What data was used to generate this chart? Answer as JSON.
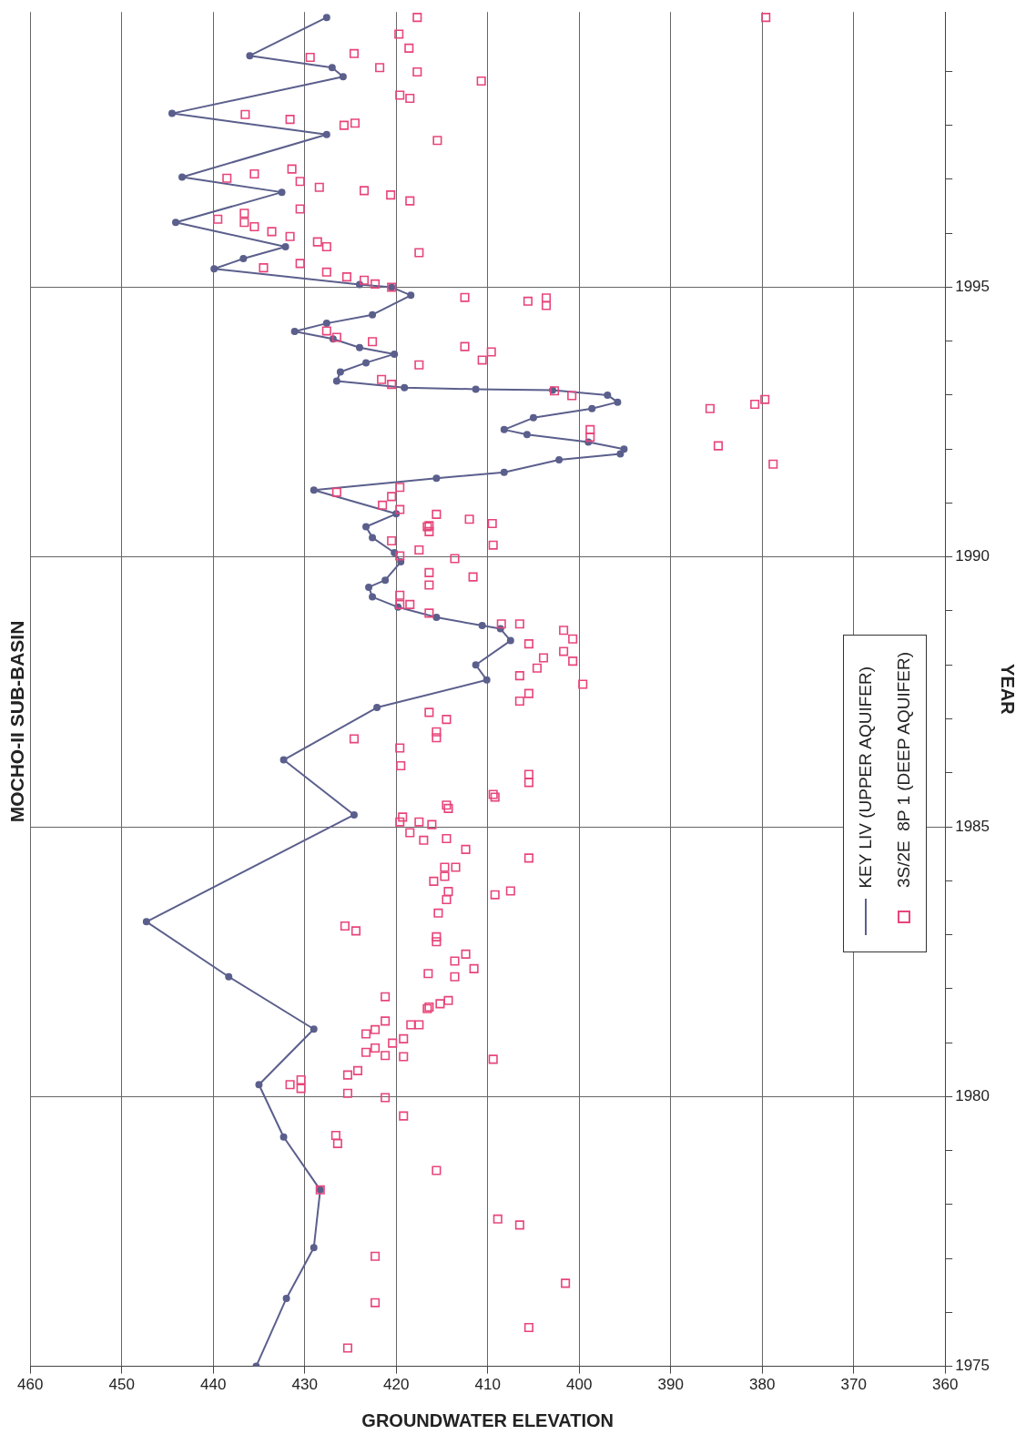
{
  "chart_data": {
    "type": "line",
    "title": "MOCHO-II SUB-BASIN",
    "xlabel": "GROUNDWATER ELEVATION",
    "ylabel": "YEAR",
    "xlim": [
      460,
      360
    ],
    "xticks": [
      460,
      450,
      440,
      430,
      420,
      410,
      400,
      390,
      380,
      370,
      360
    ],
    "ylim": [
      1975,
      2000.1
    ],
    "yticks": [
      1975,
      {
        "value": 1976,
        "label": null
      },
      {
        "value": 1977,
        "label": null
      },
      {
        "value": 1978,
        "label": null
      },
      {
        "value": 1979,
        "label": null
      },
      1980,
      {
        "value": 1981,
        "label": null
      },
      {
        "value": 1982,
        "label": null
      },
      {
        "value": 1983,
        "label": null
      },
      {
        "value": 1984,
        "label": null
      },
      1985,
      {
        "value": 1986,
        "label": null
      },
      {
        "value": 1987,
        "label": null
      },
      {
        "value": 1988,
        "label": null
      },
      {
        "value": 1989,
        "label": null
      },
      1990,
      {
        "value": 1991,
        "label": null
      },
      {
        "value": 1992,
        "label": null
      },
      {
        "value": 1993,
        "label": null
      },
      {
        "value": 1994,
        "label": null
      },
      1995,
      {
        "value": 1996,
        "label": null
      },
      {
        "value": 1997,
        "label": null
      },
      {
        "value": 1998,
        "label": null
      },
      {
        "value": 1999,
        "label": null
      }
    ],
    "grid": true,
    "legend": "right",
    "series": [
      {
        "name": "KEY LIV (UPPER AQUIFER)",
        "type": "line",
        "color": "#5b5f8c",
        "marker": "circle",
        "line_style": "solid",
        "x": [
          435.3,
          432.0,
          429.0,
          428.3,
          432.3,
          435.0,
          429.0,
          438.3,
          447.3,
          424.6,
          432.3,
          422.1,
          410.1,
          411.3,
          407.5,
          408.6,
          410.6,
          415.6,
          419.8,
          422.6,
          423.0,
          421.2,
          419.5,
          420.2,
          422.6,
          423.3,
          420.0,
          429.0,
          415.6,
          408.2,
          402.2,
          395.5,
          395.1,
          399.0,
          405.7,
          408.2,
          405.0,
          398.6,
          395.8,
          396.9,
          402.9,
          411.3,
          419.1,
          426.5,
          426.1,
          423.3,
          420.2,
          424.0,
          426.9,
          431.1,
          427.6,
          422.6,
          418.4,
          420.5,
          424.0,
          439.9,
          436.7,
          432.1,
          444.1,
          432.5,
          443.4,
          427.6,
          444.5,
          425.8,
          427.0,
          436.0,
          427.6
        ],
        "values": [
          1975.0,
          1976.26,
          1977.2,
          1978.27,
          1979.25,
          1980.22,
          1981.25,
          1982.22,
          1983.24,
          1985.22,
          1986.24,
          1987.21,
          1987.72,
          1988.0,
          1988.45,
          1988.67,
          1988.73,
          1988.88,
          1989.07,
          1989.26,
          1989.44,
          1989.57,
          1989.91,
          1990.08,
          1990.36,
          1990.56,
          1990.8,
          1991.24,
          1991.46,
          1991.57,
          1991.8,
          1991.91,
          1992.0,
          1992.13,
          1992.27,
          1992.36,
          1992.58,
          1992.75,
          1992.87,
          1993.0,
          1993.09,
          1993.11,
          1993.14,
          1993.26,
          1993.43,
          1993.6,
          1993.76,
          1993.88,
          1994.04,
          1994.18,
          1994.33,
          1994.49,
          1994.85,
          1995.0,
          1995.05,
          1995.34,
          1995.53,
          1995.75,
          1996.2,
          1996.76,
          1997.04,
          1997.83,
          1998.22,
          1998.9,
          1999.07,
          1999.29,
          2000.0
        ]
      },
      {
        "name": "3S/2E  8P 1 (DEEP AQUIFER)",
        "type": "scatter",
        "color": "#e8457a",
        "marker": "square",
        "x": [
          422.3,
          401.5,
          422.3,
          405.5,
          425.3,
          428.3,
          415.6,
          408.9,
          406.5,
          426.6,
          426.4,
          419.2,
          421.2,
          425.3,
          430.4,
          430.4,
          431.6,
          425.3,
          424.2,
          409.4,
          423.3,
          422.3,
          421.2,
          419.2,
          420.4,
          419.2,
          421.2,
          422.3,
          423.3,
          418.4,
          417.5,
          416.4,
          415.2,
          421.2,
          416.6,
          414.3,
          416.5,
          413.6,
          411.5,
          413.6,
          412.4,
          415.6,
          415.6,
          425.6,
          424.4,
          415.4,
          414.5,
          414.3,
          415.9,
          414.7,
          413.5,
          414.7,
          409.2,
          407.5,
          405.5,
          412.4,
          414.5,
          417.0,
          418.5,
          417.5,
          416.1,
          419.3,
          419.6,
          414.5,
          414.3,
          409.4,
          409.2,
          405.5,
          405.5,
          419.5,
          419.6,
          424.6,
          415.6,
          415.6,
          414.5,
          416.4,
          406.5,
          405.5,
          399.6,
          406.5,
          404.6,
          403.9,
          400.7,
          401.7,
          400.7,
          401.7,
          405.5,
          408.5,
          406.5,
          416.4,
          418.5,
          419.6,
          419.6,
          416.4,
          416.4,
          411.6,
          413.6,
          419.6,
          417.5,
          409.4,
          420.5,
          416.4,
          416.4,
          409.5,
          412.0,
          415.6,
          416.6,
          419.6,
          421.5,
          420.5,
          426.5,
          419.6,
          398.8,
          398.8,
          385.7,
          380.8,
          379.7,
          384.8,
          378.8,
          402.7,
          400.8,
          421.6,
          420.5,
          417.5,
          412.5,
          410.6,
          409.6,
          422.6,
          427.6,
          426.5,
          412.5,
          405.6,
          403.6,
          403.6,
          420.5,
          422.3,
          423.5,
          425.4,
          427.6,
          430.5,
          434.5,
          417.5,
          418.5,
          420.6,
          423.5,
          428.4,
          430.5,
          431.4,
          435.5,
          438.5,
          439.5,
          436.6,
          436.6,
          435.5,
          433.6,
          431.6,
          428.6,
          427.6,
          430.5,
          425.7,
          424.5,
          436.5,
          431.6,
          415.5,
          419.6,
          418.5,
          410.7,
          417.7,
          421.8,
          424.6,
          429.4,
          418.6,
          419.7,
          417.7,
          379.6
        ],
        "values": [
          1977.04,
          1976.54,
          1976.18,
          1975.72,
          1975.34,
          1978.27,
          1978.63,
          1977.73,
          1977.62,
          1979.28,
          1979.13,
          1979.64,
          1979.98,
          1980.06,
          1980.15,
          1980.31,
          1980.22,
          1980.4,
          1980.48,
          1980.69,
          1980.82,
          1980.9,
          1980.76,
          1980.74,
          1980.99,
          1981.07,
          1981.4,
          1981.24,
          1981.16,
          1981.33,
          1981.33,
          1981.66,
          1981.72,
          1981.85,
          1981.63,
          1981.78,
          1982.28,
          1982.22,
          1982.37,
          1982.51,
          1982.64,
          1982.87,
          1982.96,
          1983.16,
          1983.07,
          1983.4,
          1983.65,
          1983.8,
          1983.99,
          1984.08,
          1984.25,
          1984.25,
          1983.74,
          1983.81,
          1984.42,
          1984.58,
          1984.78,
          1984.75,
          1984.89,
          1985.09,
          1985.04,
          1985.18,
          1985.09,
          1985.4,
          1985.34,
          1985.6,
          1985.55,
          1985.97,
          1985.82,
          1986.13,
          1986.46,
          1986.63,
          1986.65,
          1986.76,
          1986.99,
          1987.12,
          1987.33,
          1987.47,
          1987.64,
          1987.8,
          1987.94,
          1988.13,
          1988.07,
          1988.25,
          1988.48,
          1988.64,
          1988.39,
          1988.76,
          1988.76,
          1988.96,
          1989.12,
          1989.29,
          1989.12,
          1989.48,
          1989.71,
          1989.63,
          1989.97,
          1990.02,
          1990.13,
          1990.22,
          1990.3,
          1990.47,
          1990.58,
          1990.62,
          1990.7,
          1990.79,
          1990.56,
          1990.88,
          1990.96,
          1991.12,
          1991.2,
          1991.29,
          1992.36,
          1992.22,
          1992.75,
          1992.83,
          1992.92,
          1992.06,
          1991.72,
          1993.08,
          1992.99,
          1993.29,
          1993.2,
          1993.56,
          1993.9,
          1993.65,
          1993.8,
          1993.99,
          1994.19,
          1994.07,
          1994.81,
          1994.74,
          1994.8,
          1994.66,
          1995.0,
          1995.06,
          1995.13,
          1995.19,
          1995.28,
          1995.44,
          1995.36,
          1995.64,
          1996.6,
          1996.71,
          1996.79,
          1996.85,
          1996.96,
          1997.19,
          1997.1,
          1997.02,
          1996.26,
          1996.37,
          1996.2,
          1996.12,
          1996.03,
          1995.94,
          1995.84,
          1995.75,
          1996.45,
          1998.0,
          1998.04,
          1998.2,
          1998.11,
          1997.72,
          1998.56,
          1998.5,
          1998.82,
          1998.99,
          1999.07,
          1999.33,
          1999.26,
          1999.43,
          1999.69,
          2000.0,
          2000.0
        ]
      }
    ]
  }
}
